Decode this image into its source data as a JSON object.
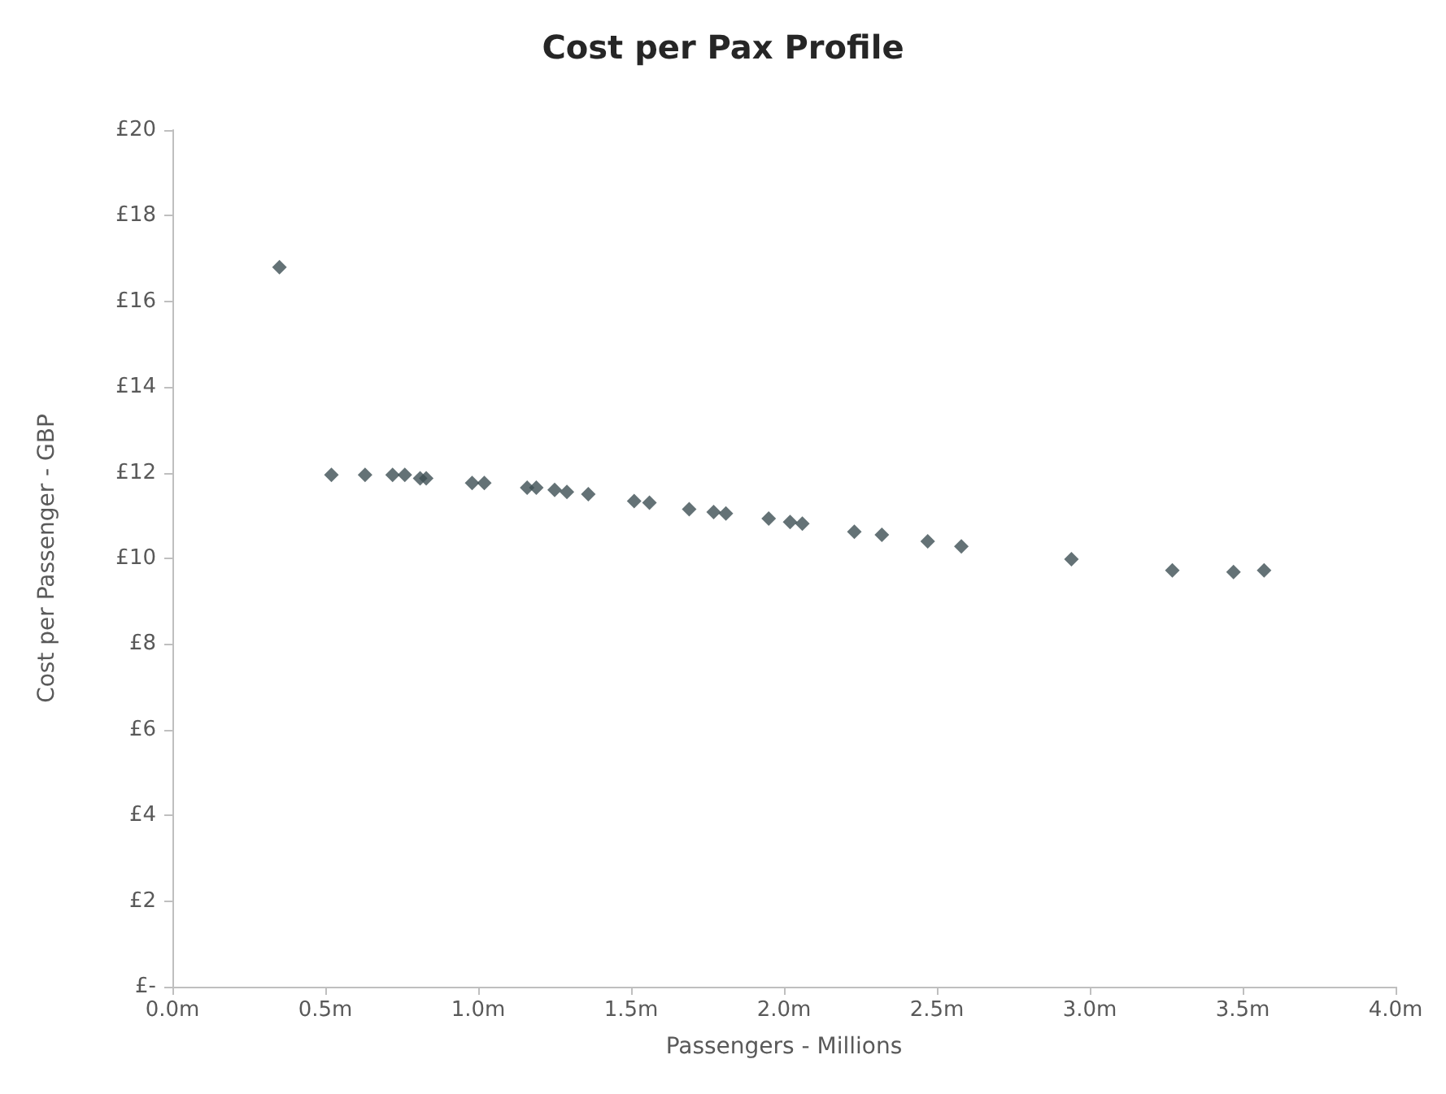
{
  "chart_data": {
    "type": "scatter",
    "title": "Cost per Pax Profile",
    "xlabel": "Passengers - Millions",
    "ylabel": "Cost per Passenger - GBP",
    "x": [
      0.35,
      0.52,
      0.63,
      0.72,
      0.76,
      0.81,
      0.83,
      0.98,
      1.02,
      1.16,
      1.19,
      1.25,
      1.29,
      1.36,
      1.51,
      1.56,
      1.69,
      1.77,
      1.81,
      1.95,
      2.02,
      2.06,
      2.23,
      2.32,
      2.47,
      2.58,
      2.94,
      3.27,
      3.47,
      3.57
    ],
    "series": [
      {
        "color": "#3d4f54",
        "values": [
          16.8,
          11.95,
          11.95,
          11.95,
          11.95,
          11.87,
          11.87,
          11.76,
          11.76,
          11.65,
          11.65,
          11.6,
          11.55,
          11.5,
          11.34,
          11.3,
          11.15,
          11.08,
          11.05,
          10.93,
          10.85,
          10.81,
          10.62,
          10.55,
          10.4,
          10.28,
          9.98,
          9.72,
          9.68,
          9.72
        ]
      }
    ],
    "xlim": [
      0,
      4
    ],
    "ylim": [
      0,
      20
    ],
    "xticks": [
      {
        "value": 0,
        "label": "0.0m"
      },
      {
        "value": 0.5,
        "label": "0.5m"
      },
      {
        "value": 1,
        "label": "1.0m"
      },
      {
        "value": 1.5,
        "label": "1.5m"
      },
      {
        "value": 2,
        "label": "2.0m"
      },
      {
        "value": 2.5,
        "label": "2.5m"
      },
      {
        "value": 3,
        "label": "3.0m"
      },
      {
        "value": 3.5,
        "label": "3.5m"
      },
      {
        "value": 4,
        "label": "4.0m"
      }
    ],
    "yticks": [
      {
        "value": 0,
        "label": "£-"
      },
      {
        "value": 2,
        "label": "£2"
      },
      {
        "value": 4,
        "label": "£4"
      },
      {
        "value": 6,
        "label": "£6"
      },
      {
        "value": 8,
        "label": "£8"
      },
      {
        "value": 10,
        "label": "£10"
      },
      {
        "value": 12,
        "label": "£12"
      },
      {
        "value": 14,
        "label": "£14"
      },
      {
        "value": 16,
        "label": "£16"
      },
      {
        "value": 18,
        "label": "£18"
      },
      {
        "value": 20,
        "label": "£20"
      }
    ],
    "marker": "diamond",
    "grid": false
  }
}
